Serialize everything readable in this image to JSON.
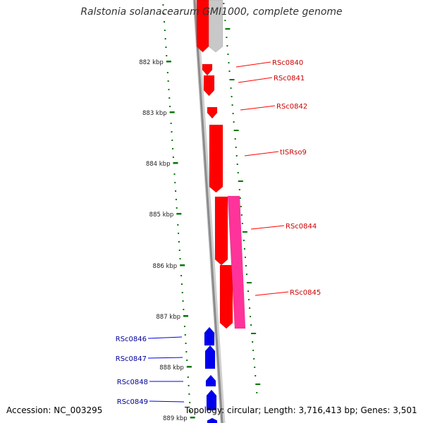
{
  "title": "Ralstonia solanacearum GMI1000, complete genome",
  "footer": {
    "accession": "Accession: NC_003295",
    "summary": "Topology: circular; Length: 3,716,413 bp; Genes: 3,501"
  },
  "colors": {
    "forward_gene": "#ff0000",
    "forward_label": "#cc0000",
    "reverse_gene": "#0000ee",
    "reverse_label": "#000099",
    "rna_gene": "#ff3399",
    "backbone": "#8c8c8c",
    "grey_feature": "#c8c8c8",
    "tick": "#007700"
  },
  "scale_labels": [
    "882 kbp",
    "883 kbp",
    "884 kbp",
    "885 kbp",
    "886 kbp",
    "887 kbp",
    "888 kbp",
    "889 kbp"
  ],
  "gene_labels_forward": [
    "RSc0840",
    "RSc0841",
    "RSc0842",
    "tISRso9",
    "RSc0844",
    "RSc0845"
  ],
  "gene_labels_reverse": [
    "RSc0846",
    "RSc0847",
    "RSc0848",
    "RSc0849"
  ]
}
